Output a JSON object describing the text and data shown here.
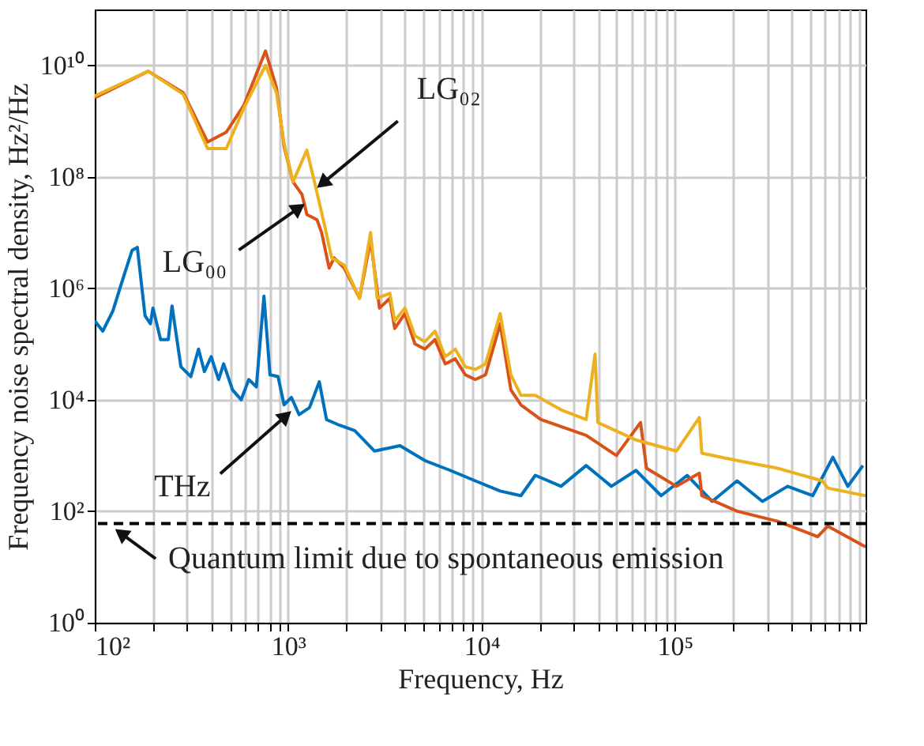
{
  "chart_data": {
    "type": "line",
    "xlabel": "Frequency, Hz",
    "ylabel": "Frequency noise spectral density, Hz²/Hz",
    "log": "xy",
    "grid": true,
    "line_style": "solid",
    "marker": "none",
    "xlim": [
      100,
      970000
    ],
    "ylim": [
      1,
      100000000000
    ],
    "xticks": [
      {
        "value": 100,
        "label": "10²"
      },
      {
        "value": 200,
        "label": null
      },
      {
        "value": 300,
        "label": null
      },
      {
        "value": 400,
        "label": null
      },
      {
        "value": 500,
        "label": null
      },
      {
        "value": 600,
        "label": null
      },
      {
        "value": 700,
        "label": null
      },
      {
        "value": 800,
        "label": null
      },
      {
        "value": 900,
        "label": null
      },
      {
        "value": 1000,
        "label": "10³"
      },
      {
        "value": 2000,
        "label": null
      },
      {
        "value": 3000,
        "label": null
      },
      {
        "value": 4000,
        "label": null
      },
      {
        "value": 5000,
        "label": null
      },
      {
        "value": 6000,
        "label": null
      },
      {
        "value": 7000,
        "label": null
      },
      {
        "value": 8000,
        "label": null
      },
      {
        "value": 9000,
        "label": null
      },
      {
        "value": 10000,
        "label": "10⁴"
      },
      {
        "value": 20000,
        "label": null
      },
      {
        "value": 30000,
        "label": null
      },
      {
        "value": 40000,
        "label": null
      },
      {
        "value": 50000,
        "label": null
      },
      {
        "value": 60000,
        "label": null
      },
      {
        "value": 70000,
        "label": null
      },
      {
        "value": 80000,
        "label": null
      },
      {
        "value": 90000,
        "label": null
      },
      {
        "value": 100000,
        "label": "10⁵"
      },
      {
        "value": 200000,
        "label": null
      },
      {
        "value": 300000,
        "label": null
      },
      {
        "value": 400000,
        "label": null
      },
      {
        "value": 500000,
        "label": null
      },
      {
        "value": 600000,
        "label": null
      },
      {
        "value": 700000,
        "label": null
      },
      {
        "value": 800000,
        "label": null
      },
      {
        "value": 900000,
        "label": null
      }
    ],
    "yticks": [
      {
        "value": 1,
        "label": "10⁰"
      },
      {
        "value": 100,
        "label": "10²"
      },
      {
        "value": 10000,
        "label": "10⁴"
      },
      {
        "value": 1000000,
        "label": "10⁶"
      },
      {
        "value": 100000000,
        "label": "10⁸"
      },
      {
        "value": 10000000000,
        "label": "10¹⁰"
      }
    ],
    "series": [
      {
        "color": "#0072bd",
        "x": [
          100,
          110,
          124,
          140,
          156,
          166,
          182,
          194,
          200,
          219,
          240,
          251,
          279,
          314,
          344,
          369,
          400,
          437,
          464,
          516,
          572,
          626,
          685,
          750,
          806,
          887,
          953,
          1040,
          1140,
          1290,
          1450,
          1580,
          1840,
          2210,
          2800,
          3790,
          5100,
          6900,
          9300,
          12500,
          16000,
          19000,
          25800,
          34800,
          47000,
          63000,
          85000,
          116000,
          156000,
          210000,
          284000,
          383000,
          517000,
          657000,
          785000,
          940000
        ],
        "values": [
          260000,
          170000,
          390000,
          1500000,
          4800000,
          5400000,
          320000,
          230000,
          440000,
          120000,
          120000,
          480000,
          39000,
          26000,
          81000,
          32000,
          59000,
          23000,
          44000,
          15000,
          10000,
          23000,
          17000,
          720000,
          28000,
          26000,
          8100,
          11000,
          5400,
          7200,
          21000,
          4400,
          3500,
          2800,
          1200,
          1500,
          810,
          540,
          350,
          230,
          190,
          440,
          280,
          660,
          280,
          540,
          190,
          440,
          150,
          350,
          150,
          280,
          190,
          930,
          280,
          660
        ]
      },
      {
        "color": "#d95319",
        "x": [
          100,
          189,
          287,
          383,
          479,
          590,
          764,
          871,
          953,
          1060,
          1180,
          1250,
          1410,
          1490,
          1630,
          1730,
          1950,
          2340,
          2670,
          2970,
          3360,
          3560,
          4020,
          4530,
          5100,
          5750,
          6500,
          7320,
          8250,
          9300,
          10500,
          12500,
          14200,
          16000,
          20300,
          34800,
          49900,
          66500,
          71400,
          102000,
          134000,
          138000,
          210000,
          340000,
          548000,
          618000,
          970000
        ],
        "values": [
          2600000000,
          7800000000,
          3200000000,
          420000000,
          630000000,
          1900000000,
          18000000000,
          3900000000,
          350000000,
          81000000,
          48000000,
          21000000,
          17000000,
          10000000,
          2300000,
          3500000,
          2300000,
          660000,
          7300000,
          440000,
          660000,
          190000,
          350000,
          100000,
          81000,
          120000,
          44000,
          54000,
          28000,
          23000,
          28000,
          230000,
          15000,
          8100,
          4400,
          2300,
          1000,
          3900,
          590,
          280,
          480,
          190,
          100,
          66,
          35,
          54,
          23
        ]
      },
      {
        "color": "#edb120",
        "x": [
          100,
          189,
          287,
          383,
          479,
          590,
          764,
          871,
          953,
          1060,
          1250,
          1360,
          1540,
          1680,
          1950,
          2340,
          2670,
          2890,
          3360,
          3560,
          4020,
          4530,
          5100,
          5750,
          6500,
          7320,
          8250,
          9300,
          10500,
          12500,
          14200,
          16000,
          19000,
          25800,
          34800,
          38700,
          40000,
          63000,
          102000,
          134000,
          138000,
          210000,
          340000,
          580000,
          618000,
          970000
        ],
        "values": [
          2800000000,
          7800000000,
          3000000000,
          320000000,
          320000000,
          1700000000,
          10000000000,
          3200000000,
          390000000,
          81000000,
          300000000,
          89000000,
          14000000,
          3500000,
          2600000,
          660000,
          10000000,
          660000,
          810000,
          260000,
          440000,
          140000,
          110000,
          170000,
          59000,
          81000,
          39000,
          35000,
          44000,
          350000,
          28000,
          12000,
          12000,
          6600,
          4400,
          66000,
          3900,
          1900,
          1200,
          4800,
          1100,
          810,
          590,
          350,
          260,
          190
        ]
      }
    ],
    "ref_lines": [
      {
        "axis": "y",
        "value": 60,
        "label": "Quantum limit due to spontaneous emission",
        "color": "#000000",
        "line_style": "dashed"
      }
    ],
    "annotations": [
      {
        "text": "LG₀₂",
        "x": 1540,
        "y": 81000000
      },
      {
        "text": "LG₀₀",
        "x": 1110,
        "y": 26000000
      },
      {
        "text": "THz",
        "x": 953,
        "y": 4800
      }
    ]
  }
}
